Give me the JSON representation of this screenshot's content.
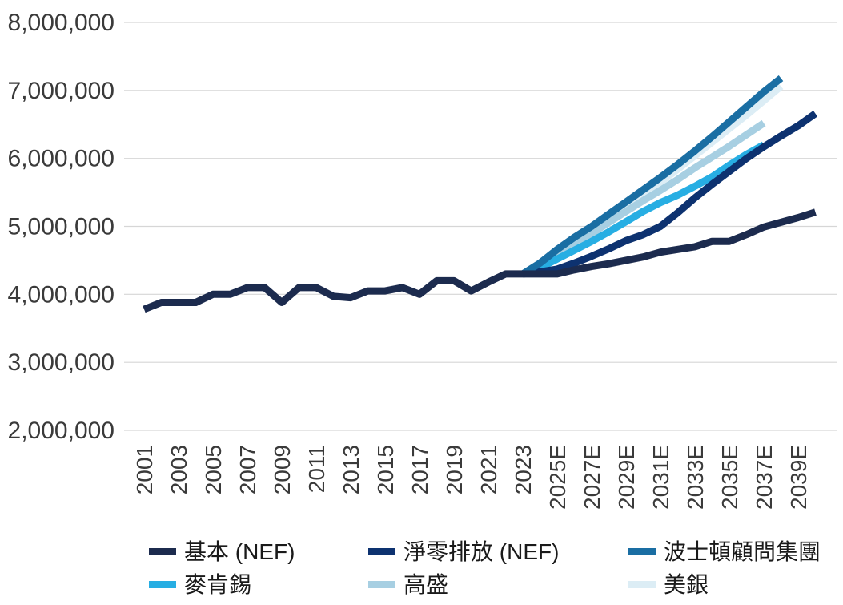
{
  "chart_data": {
    "type": "line",
    "title": "",
    "xlabel": "",
    "ylabel": "",
    "ylim": [
      2000000,
      8000000
    ],
    "yticks": [
      2000000,
      3000000,
      4000000,
      5000000,
      6000000,
      7000000,
      8000000
    ],
    "ytick_labels": [
      "2,000,000",
      "3,000,000",
      "4,000,000",
      "5,000,000",
      "6,000,000",
      "7,000,000",
      "8,000,000"
    ],
    "grid": "horizontal",
    "legend_position": "bottom",
    "x": [
      "2001",
      "2002",
      "2003",
      "2004",
      "2005",
      "2006",
      "2007",
      "2008",
      "2009",
      "2010",
      "2011",
      "2012",
      "2013",
      "2014",
      "2015",
      "2016",
      "2017",
      "2018",
      "2019",
      "2020",
      "2021",
      "2022",
      "2023",
      "2024E",
      "2025E",
      "2026E",
      "2027E",
      "2028E",
      "2029E",
      "2030E",
      "2031E",
      "2032E",
      "2033E",
      "2034E",
      "2035E",
      "2036E",
      "2037E",
      "2038E",
      "2039E",
      "2040E"
    ],
    "x_tick_labels": [
      "2001",
      "2003",
      "2005",
      "2007",
      "2009",
      "2011",
      "2013",
      "2015",
      "2017",
      "2019",
      "2021",
      "2023",
      "2025E",
      "2027E",
      "2029E",
      "2031E",
      "2033E",
      "2035E",
      "2037E",
      "2039E"
    ],
    "series": [
      {
        "name": "基本 (NEF)",
        "color": "#1c2b4e",
        "values": [
          3780000,
          3880000,
          3880000,
          3880000,
          4000000,
          4000000,
          4100000,
          4100000,
          3880000,
          4100000,
          4100000,
          3970000,
          3950000,
          4050000,
          4050000,
          4100000,
          4000000,
          4200000,
          4200000,
          4050000,
          4180000,
          4300000,
          4300000,
          4300000,
          4300000,
          4360000,
          4410000,
          4450000,
          4500000,
          4550000,
          4620000,
          4660000,
          4700000,
          4780000,
          4780000,
          4880000,
          4990000,
          5060000,
          5130000,
          5210000
        ]
      },
      {
        "name": "淨零排放 (NEF)",
        "color": "#0d3270",
        "values": [
          null,
          null,
          null,
          null,
          null,
          null,
          null,
          null,
          null,
          null,
          null,
          null,
          null,
          null,
          null,
          null,
          null,
          null,
          null,
          null,
          null,
          null,
          4300000,
          4330000,
          4370000,
          4460000,
          4560000,
          4670000,
          4790000,
          4880000,
          5000000,
          5200000,
          5420000,
          5620000,
          5810000,
          6000000,
          6170000,
          6330000,
          6480000,
          6660000
        ]
      },
      {
        "name": "波士頓顧問集團",
        "color": "#1a6ea3",
        "values": [
          null,
          null,
          null,
          null,
          null,
          null,
          null,
          null,
          null,
          null,
          null,
          null,
          null,
          null,
          null,
          null,
          null,
          null,
          null,
          null,
          null,
          null,
          4300000,
          4460000,
          4660000,
          4840000,
          5000000,
          5180000,
          5360000,
          5540000,
          5720000,
          5910000,
          6110000,
          6320000,
          6540000,
          6760000,
          6980000,
          7180000,
          null,
          null
        ]
      },
      {
        "name": "麥肯錫",
        "color": "#27aee3",
        "values": [
          null,
          null,
          null,
          null,
          null,
          null,
          null,
          null,
          null,
          null,
          null,
          null,
          null,
          null,
          null,
          null,
          null,
          null,
          null,
          null,
          null,
          null,
          4300000,
          4390000,
          4520000,
          4650000,
          4780000,
          4920000,
          5070000,
          5220000,
          5350000,
          5460000,
          5590000,
          5730000,
          5900000,
          6060000,
          6200000,
          null,
          null,
          null
        ]
      },
      {
        "name": "高盛",
        "color": "#a7cfe2",
        "values": [
          null,
          null,
          null,
          null,
          null,
          null,
          null,
          null,
          null,
          null,
          null,
          null,
          null,
          null,
          null,
          null,
          null,
          null,
          null,
          null,
          null,
          null,
          4300000,
          4420000,
          4570000,
          4730000,
          4890000,
          5060000,
          5220000,
          5380000,
          5530000,
          5690000,
          5860000,
          6020000,
          6180000,
          6350000,
          6520000,
          null,
          null,
          null
        ]
      },
      {
        "name": "美銀",
        "color": "#dcedf5",
        "values": [
          null,
          null,
          null,
          null,
          null,
          null,
          null,
          null,
          null,
          null,
          null,
          null,
          null,
          null,
          null,
          null,
          null,
          null,
          null,
          null,
          null,
          null,
          4300000,
          4440000,
          4620000,
          4800000,
          4980000,
          5160000,
          5320000,
          5480000,
          5650000,
          5840000,
          6040000,
          6240000,
          6440000,
          6640000,
          6850000,
          7060000,
          null,
          null
        ]
      }
    ]
  }
}
